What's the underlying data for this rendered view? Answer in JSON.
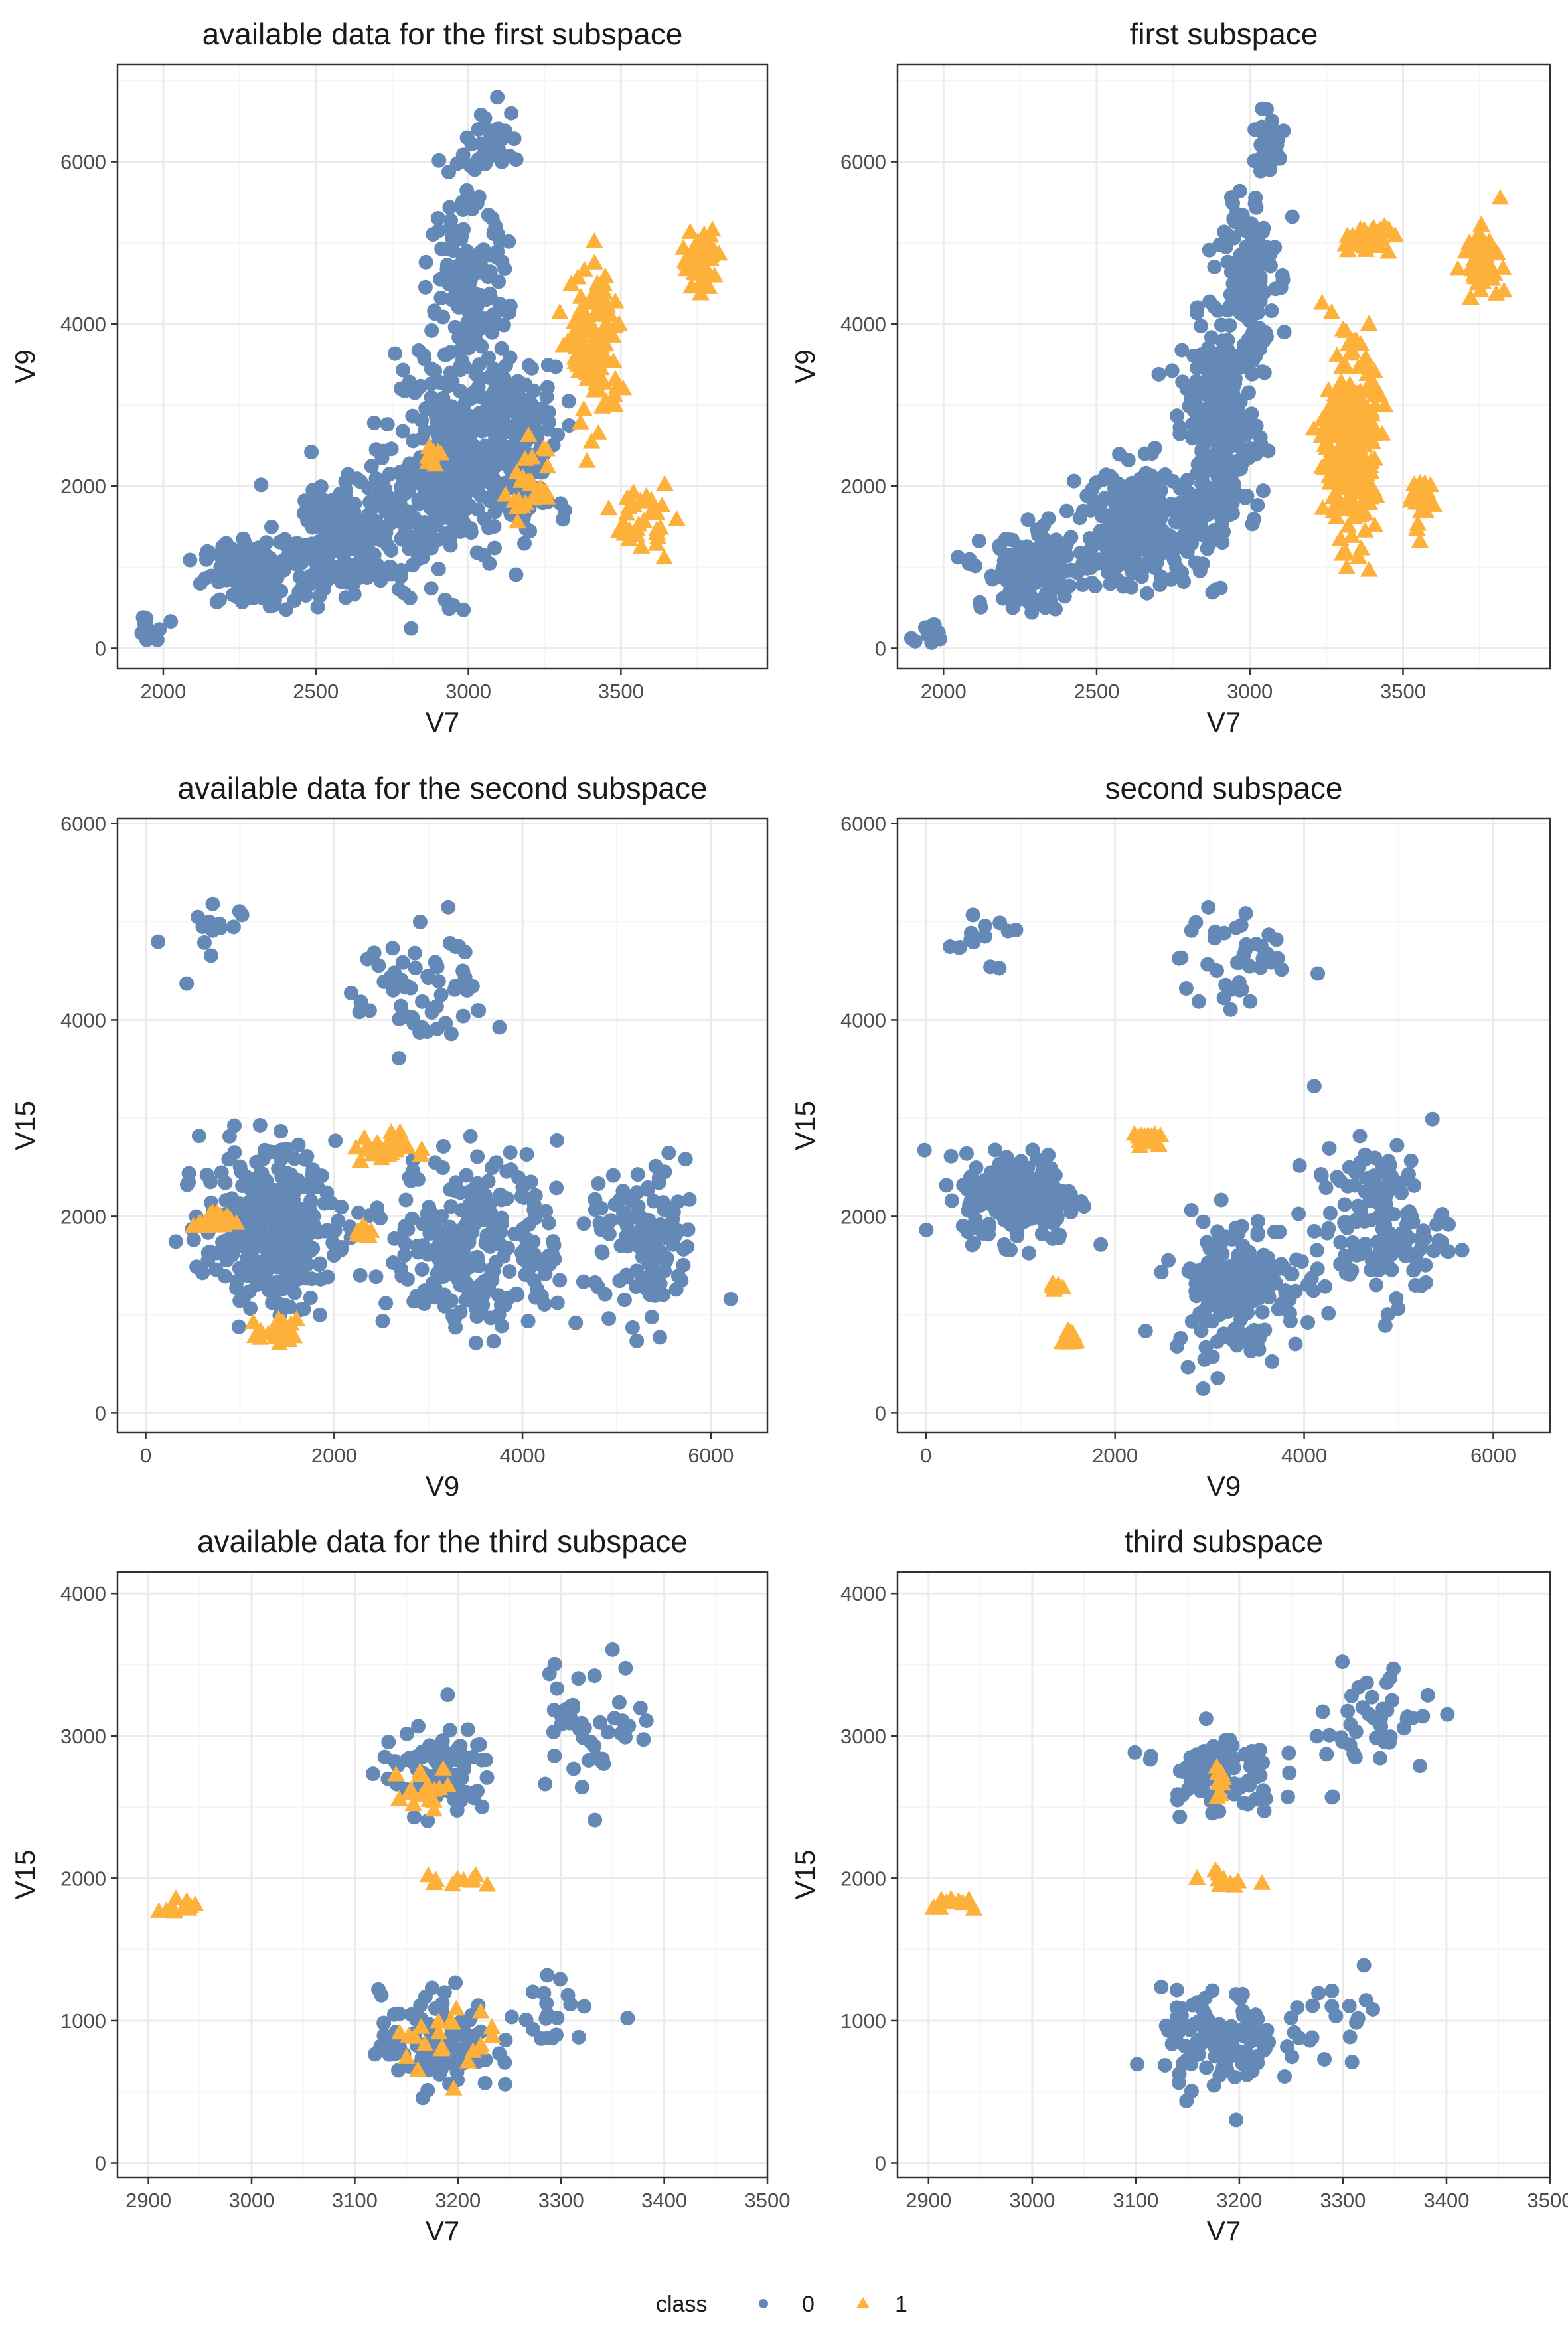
{
  "figure": {
    "legend": {
      "title": "class",
      "items": [
        "0",
        "1"
      ]
    },
    "colors": {
      "class_0": "#6489B7",
      "class_1": "#FDB03A",
      "panel_border": "#333333",
      "grid_major": "#EBEBEB",
      "grid_minor": "#F5F5F5"
    },
    "markers": {
      "class_0": "circle",
      "class_1": "triangle"
    }
  },
  "chart_data": [
    {
      "type": "scatter",
      "title": "available data for the first subspace",
      "xlabel": "V7",
      "ylabel": "V9",
      "xlim": [
        1850,
        3980
      ],
      "ylim": [
        -250,
        7200
      ],
      "xticks": [
        2000,
        2500,
        3000,
        3500
      ],
      "yticks": [
        0,
        2000,
        4000,
        6000
      ],
      "grid": true,
      "legend": "bottom",
      "series": [
        {
          "name": "0",
          "clusters": [
            {
              "center": [
                2280,
                900
              ],
              "spread": [
                150,
                400
              ],
              "n": 120
            },
            {
              "center": [
                2620,
                1400
              ],
              "spread": [
                220,
                750
              ],
              "n": 220
            },
            {
              "center": [
                2930,
                2200
              ],
              "spread": [
                200,
                1300
              ],
              "n": 260
            },
            {
              "center": [
                3000,
                4300
              ],
              "spread": [
                130,
                1200
              ],
              "n": 160
            },
            {
              "center": [
                3150,
                2600
              ],
              "spread": [
                170,
                1000
              ],
              "n": 180
            },
            {
              "center": [
                3080,
                6250
              ],
              "spread": [
                90,
                400
              ],
              "n": 40
            },
            {
              "center": [
                1950,
                200
              ],
              "spread": [
                60,
                150
              ],
              "n": 15
            }
          ]
        },
        {
          "name": "1",
          "clusters": [
            {
              "center": [
                3420,
                3700
              ],
              "spread": [
                80,
                1000
              ],
              "n": 110
            },
            {
              "center": [
                3560,
                1600
              ],
              "spread": [
                90,
                400
              ],
              "n": 35
            },
            {
              "center": [
                3760,
                4800
              ],
              "spread": [
                60,
                350
              ],
              "n": 55
            },
            {
              "center": [
                3200,
                2000
              ],
              "spread": [
                70,
                500
              ],
              "n": 25
            },
            {
              "center": [
                2880,
                2350
              ],
              "spread": [
                40,
                120
              ],
              "n": 10
            }
          ]
        }
      ]
    },
    {
      "type": "scatter",
      "title": "first subspace",
      "xlabel": "V7",
      "ylabel": "V9",
      "xlim": [
        1850,
        3980
      ],
      "ylim": [
        -250,
        7200
      ],
      "xticks": [
        2000,
        2500,
        3000,
        3500
      ],
      "yticks": [
        0,
        2000,
        4000,
        6000
      ],
      "grid": true,
      "legend": "bottom",
      "series": [
        {
          "name": "0",
          "clusters": [
            {
              "center": [
                2300,
                950
              ],
              "spread": [
                170,
                450
              ],
              "n": 150
            },
            {
              "center": [
                2650,
                1500
              ],
              "spread": [
                200,
                750
              ],
              "n": 240
            },
            {
              "center": [
                2900,
                2600
              ],
              "spread": [
                130,
                1300
              ],
              "n": 260
            },
            {
              "center": [
                2990,
                4600
              ],
              "spread": [
                90,
                1200
              ],
              "n": 140
            },
            {
              "center": [
                3060,
                6200
              ],
              "spread": [
                60,
                400
              ],
              "n": 35
            },
            {
              "center": [
                1950,
                200
              ],
              "spread": [
                60,
                150
              ],
              "n": 15
            }
          ]
        },
        {
          "name": "1",
          "clusters": [
            {
              "center": [
                3330,
                2500
              ],
              "spread": [
                80,
                1100
              ],
              "n": 300
            },
            {
              "center": [
                3380,
                5050
              ],
              "spread": [
                80,
                180
              ],
              "n": 40
            },
            {
              "center": [
                3760,
                4800
              ],
              "spread": [
                60,
                350
              ],
              "n": 55
            },
            {
              "center": [
                3560,
                1800
              ],
              "spread": [
                60,
                350
              ],
              "n": 30
            }
          ]
        }
      ]
    },
    {
      "type": "scatter",
      "title": "available data for the second subspace",
      "xlabel": "V9",
      "ylabel": "V15",
      "xlim": [
        -300,
        6600
      ],
      "ylim": [
        -200,
        6050
      ],
      "xticks": [
        0,
        2000,
        4000,
        6000
      ],
      "yticks": [
        0,
        2000,
        4000,
        6000
      ],
      "grid": true,
      "legend": "bottom",
      "series": [
        {
          "name": "0",
          "clusters": [
            {
              "center": [
                1300,
                1900
              ],
              "spread": [
                700,
                800
              ],
              "n": 300
            },
            {
              "center": [
                3500,
                1700
              ],
              "spread": [
                900,
                900
              ],
              "n": 260
            },
            {
              "center": [
                5300,
                1700
              ],
              "spread": [
                600,
                800
              ],
              "n": 110
            },
            {
              "center": [
                3000,
                4300
              ],
              "spread": [
                700,
                700
              ],
              "n": 60
            },
            {
              "center": [
                600,
                4800
              ],
              "spread": [
                400,
                500
              ],
              "n": 14
            }
          ]
        },
        {
          "name": "1",
          "clusters": [
            {
              "center": [
                2500,
                2700
              ],
              "spread": [
                300,
                150
              ],
              "n": 30
            },
            {
              "center": [
                700,
                1950
              ],
              "spread": [
                200,
                100
              ],
              "n": 25
            },
            {
              "center": [
                1400,
                800
              ],
              "spread": [
                200,
                150
              ],
              "n": 20
            },
            {
              "center": [
                2300,
                1850
              ],
              "spread": [
                90,
                80
              ],
              "n": 12
            }
          ]
        }
      ]
    },
    {
      "type": "scatter",
      "title": "second subspace",
      "xlabel": "V9",
      "ylabel": "V15",
      "xlim": [
        -300,
        6600
      ],
      "ylim": [
        -200,
        6050
      ],
      "xticks": [
        0,
        2000,
        4000,
        6000
      ],
      "yticks": [
        0,
        2000,
        4000,
        6000
      ],
      "grid": true,
      "legend": "bottom",
      "series": [
        {
          "name": "0",
          "clusters": [
            {
              "center": [
                1000,
                2200
              ],
              "spread": [
                600,
                450
              ],
              "n": 220
            },
            {
              "center": [
                3300,
                1300
              ],
              "spread": [
                700,
                700
              ],
              "n": 180
            },
            {
              "center": [
                4800,
                1900
              ],
              "spread": [
                700,
                800
              ],
              "n": 140
            },
            {
              "center": [
                3300,
                4600
              ],
              "spread": [
                600,
                600
              ],
              "n": 40
            },
            {
              "center": [
                600,
                4800
              ],
              "spread": [
                400,
                500
              ],
              "n": 14
            }
          ]
        },
        {
          "name": "1",
          "clusters": [
            {
              "center": [
                2280,
                2800
              ],
              "spread": [
                160,
                60
              ],
              "n": 16
            },
            {
              "center": [
                1350,
                1300
              ],
              "spread": [
                60,
                50
              ],
              "n": 8
            },
            {
              "center": [
                1520,
                760
              ],
              "spread": [
                80,
                100
              ],
              "n": 16
            }
          ]
        }
      ]
    },
    {
      "type": "scatter",
      "title": "available data for the third subspace",
      "xlabel": "V7",
      "ylabel": "V15",
      "xlim": [
        2870,
        3500
      ],
      "ylim": [
        -100,
        4150
      ],
      "xticks": [
        2900,
        3000,
        3100,
        3200,
        3300,
        3400,
        3500
      ],
      "yticks": [
        0,
        1000,
        2000,
        3000,
        4000
      ],
      "grid": true,
      "legend": "bottom",
      "series": [
        {
          "name": "0",
          "clusters": [
            {
              "center": [
                3180,
                2750
              ],
              "spread": [
                55,
                300
              ],
              "n": 90
            },
            {
              "center": [
                3180,
                850
              ],
              "spread": [
                55,
                350
              ],
              "n": 110
            },
            {
              "center": [
                3330,
                3100
              ],
              "spread": [
                60,
                450
              ],
              "n": 45
            },
            {
              "center": [
                3300,
                1050
              ],
              "spread": [
                50,
                250
              ],
              "n": 20
            }
          ]
        },
        {
          "name": "1",
          "clusters": [
            {
              "center": [
                2930,
                1820
              ],
              "spread": [
                25,
                60
              ],
              "n": 12
            },
            {
              "center": [
                3170,
                2600
              ],
              "spread": [
                30,
                180
              ],
              "n": 18
            },
            {
              "center": [
                3200,
                1980
              ],
              "spread": [
                40,
                60
              ],
              "n": 10
            },
            {
              "center": [
                3180,
                900
              ],
              "spread": [
                50,
                250
              ],
              "n": 22
            }
          ]
        }
      ]
    },
    {
      "type": "scatter",
      "title": "third subspace",
      "xlabel": "V7",
      "ylabel": "V15",
      "xlim": [
        2870,
        3500
      ],
      "ylim": [
        -100,
        4150
      ],
      "xticks": [
        2900,
        3000,
        3100,
        3200,
        3300,
        3400,
        3500
      ],
      "yticks": [
        0,
        1000,
        2000,
        3000,
        4000
      ],
      "grid": true,
      "legend": "bottom",
      "series": [
        {
          "name": "0",
          "clusters": [
            {
              "center": [
                3180,
                2750
              ],
              "spread": [
                55,
                300
              ],
              "n": 80
            },
            {
              "center": [
                3180,
                850
              ],
              "spread": [
                55,
                350
              ],
              "n": 110
            },
            {
              "center": [
                3330,
                3100
              ],
              "spread": [
                60,
                450
              ],
              "n": 45
            },
            {
              "center": [
                3300,
                1050
              ],
              "spread": [
                50,
                250
              ],
              "n": 20
            }
          ]
        },
        {
          "name": "1",
          "clusters": [
            {
              "center": [
                2930,
                1820
              ],
              "spread": [
                25,
                60
              ],
              "n": 12
            },
            {
              "center": [
                3180,
                2650
              ],
              "spread": [
                10,
                100
              ],
              "n": 10
            },
            {
              "center": [
                3190,
                1980
              ],
              "spread": [
                40,
                60
              ],
              "n": 10
            }
          ]
        }
      ]
    }
  ]
}
